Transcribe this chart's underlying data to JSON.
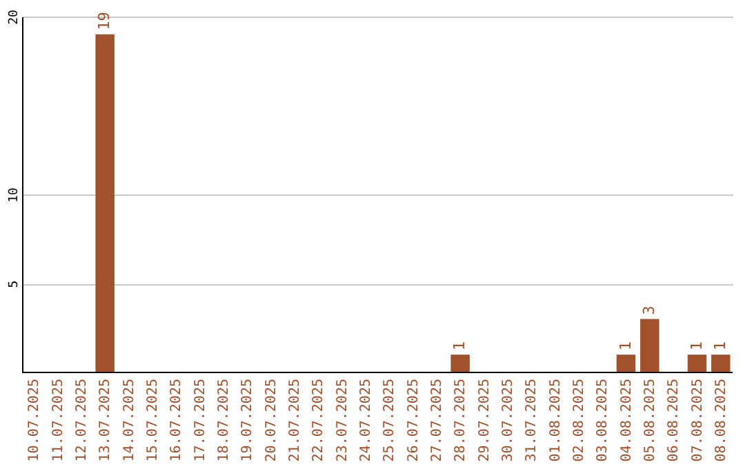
{
  "chart_data": {
    "type": "bar",
    "categories": [
      "10.07.2025",
      "11.07.2025",
      "12.07.2025",
      "13.07.2025",
      "14.07.2025",
      "15.07.2025",
      "16.07.2025",
      "17.07.2025",
      "18.07.2025",
      "19.07.2025",
      "20.07.2025",
      "21.07.2025",
      "22.07.2025",
      "23.07.2025",
      "24.07.2025",
      "25.07.2025",
      "26.07.2025",
      "27.07.2025",
      "28.07.2025",
      "29.07.2025",
      "30.07.2025",
      "31.07.2025",
      "01.08.2025",
      "02.08.2025",
      "03.08.2025",
      "04.08.2025",
      "05.08.2025",
      "06.08.2025",
      "07.08.2025",
      "08.08.2025"
    ],
    "values": [
      0,
      0,
      0,
      19,
      0,
      0,
      0,
      0,
      0,
      0,
      0,
      0,
      0,
      0,
      0,
      0,
      0,
      0,
      1,
      0,
      0,
      0,
      0,
      0,
      0,
      1,
      3,
      0,
      1,
      1
    ],
    "value_labels": [
      null,
      null,
      null,
      "19",
      null,
      null,
      null,
      null,
      null,
      null,
      null,
      null,
      null,
      null,
      null,
      null,
      null,
      null,
      "1",
      null,
      null,
      null,
      null,
      null,
      null,
      "1",
      "3",
      null,
      "1",
      "1"
    ],
    "color": "#a0522d",
    "ylim": [
      0,
      20
    ],
    "yticks": [
      5,
      10,
      20
    ],
    "grid": "y"
  }
}
